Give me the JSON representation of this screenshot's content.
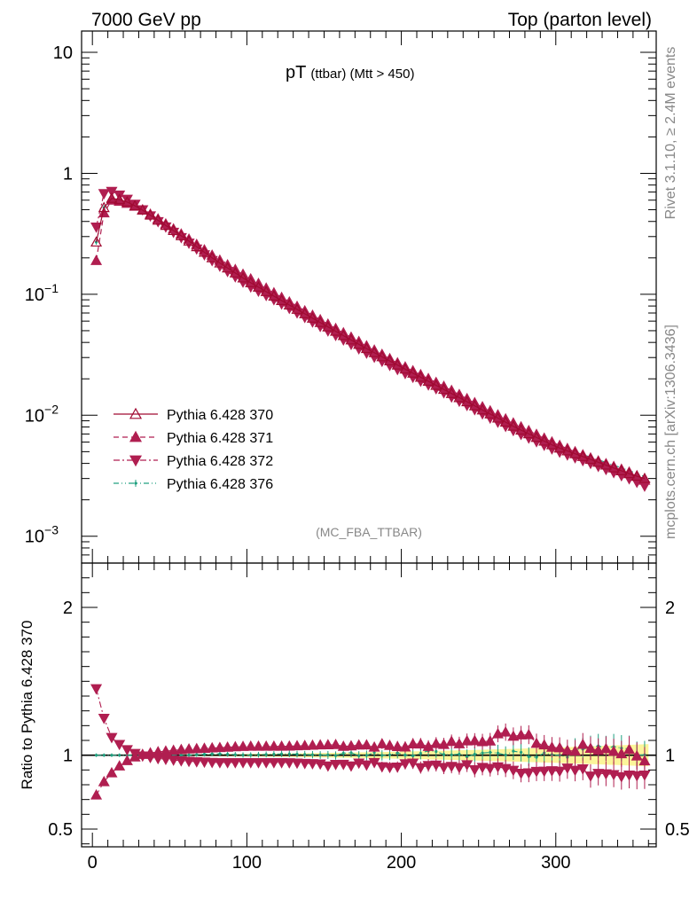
{
  "header": {
    "left": "7000 GeV pp",
    "right": "Top (parton level)"
  },
  "side_labels": {
    "rivet": "Rivet 3.1.10, ≥ 2.4M events",
    "mcplots": "mcplots.cern.ch [arXiv:1306.3436]"
  },
  "chart_data": [
    {
      "type": "line",
      "title_main": "pT",
      "title_sub": "(ttbar) (Mtt > 450)",
      "watermark": "(MC_FBA_TTBAR)",
      "yscale": "log",
      "ylim": [
        0.0006,
        15
      ],
      "xlim": [
        -7,
        365
      ],
      "y_ticks": [
        {
          "value": 10,
          "label": "10"
        },
        {
          "value": 1,
          "label": "1"
        },
        {
          "value": 0.1,
          "label": "10",
          "exp": "−1"
        },
        {
          "value": 0.01,
          "label": "10",
          "exp": "−2"
        },
        {
          "value": 0.001,
          "label": "10",
          "exp": "−3"
        }
      ],
      "legend_position": "bottom-left",
      "series": [
        {
          "name": "Pythia 6.428 370",
          "color": "#a00a32",
          "marker": "triangle-up-open",
          "line": "solid",
          "x": [
            2.5,
            7.5,
            12.5,
            20,
            30,
            40,
            60,
            80,
            100,
            125,
            150,
            175,
            200,
            225,
            250,
            275,
            300,
            325,
            350,
            357.5
          ],
          "y": [
            0.27,
            0.52,
            0.62,
            0.6,
            0.52,
            0.43,
            0.29,
            0.19,
            0.13,
            0.085,
            0.056,
            0.037,
            0.025,
            0.017,
            0.0115,
            0.0078,
            0.0055,
            0.0042,
            0.0032,
            0.003
          ]
        },
        {
          "name": "Pythia 6.428 371",
          "color": "#b01e50",
          "marker": "triangle-up-filled",
          "line": "dashed",
          "x": [
            2.5,
            7.5,
            12.5,
            20,
            30,
            40,
            60,
            80,
            100,
            125,
            150,
            175,
            200,
            225,
            250,
            275,
            300,
            325,
            350,
            357.5
          ],
          "y": [
            0.19,
            0.47,
            0.6,
            0.58,
            0.52,
            0.44,
            0.3,
            0.2,
            0.14,
            0.09,
            0.059,
            0.039,
            0.026,
            0.018,
            0.0122,
            0.0083,
            0.0058,
            0.0043,
            0.0033,
            0.0029
          ]
        },
        {
          "name": "Pythia 6.428 372",
          "color": "#b01e50",
          "marker": "triangle-down-filled",
          "line": "dashdot",
          "x": [
            2.5,
            7.5,
            12.5,
            20,
            30,
            40,
            60,
            80,
            100,
            125,
            150,
            175,
            200,
            225,
            250,
            275,
            300,
            325,
            350,
            357.5
          ],
          "y": [
            0.36,
            0.68,
            0.71,
            0.64,
            0.53,
            0.42,
            0.28,
            0.18,
            0.12,
            0.08,
            0.052,
            0.034,
            0.023,
            0.016,
            0.0107,
            0.0072,
            0.0051,
            0.0039,
            0.0029,
            0.0026
          ]
        },
        {
          "name": "Pythia 6.428 376",
          "color": "#20a080",
          "marker": "dot",
          "line": "dashdotdot",
          "x": [
            2.5,
            7.5,
            12.5,
            20,
            30,
            40,
            60,
            80,
            100,
            125,
            150,
            175,
            200,
            225,
            250,
            275,
            300,
            325,
            350,
            357.5
          ],
          "y": [
            0.27,
            0.52,
            0.62,
            0.6,
            0.52,
            0.43,
            0.29,
            0.19,
            0.13,
            0.086,
            0.057,
            0.037,
            0.025,
            0.017,
            0.0117,
            0.008,
            0.0056,
            0.0044,
            0.0034,
            0.0031
          ]
        }
      ]
    },
    {
      "type": "line",
      "ylabel": "Ratio to Pythia 6.428 370",
      "xlim": [
        -7,
        365
      ],
      "ylim": [
        0.38,
        2.3
      ],
      "y_ticks": [
        0.5,
        1,
        2
      ],
      "x_ticks": [
        0,
        100,
        200,
        300
      ],
      "reference_line": 1,
      "series": [
        {
          "name": "Pythia 6.428 371",
          "x": [
            2.5,
            7.5,
            12.5,
            20,
            30,
            40,
            60,
            80,
            100,
            125,
            150,
            175,
            200,
            225,
            250,
            275,
            300,
            325,
            350,
            357.5
          ],
          "y": [
            0.73,
            0.82,
            0.88,
            0.95,
            1.0,
            1.02,
            1.04,
            1.05,
            1.06,
            1.06,
            1.07,
            1.07,
            1.06,
            1.08,
            1.1,
            1.15,
            1.04,
            1.05,
            1.02,
            0.97
          ]
        },
        {
          "name": "Pythia 6.428 372",
          "x": [
            2.5,
            7.5,
            12.5,
            20,
            30,
            40,
            60,
            80,
            100,
            125,
            150,
            175,
            200,
            225,
            250,
            275,
            300,
            325,
            350,
            357.5
          ],
          "y": [
            1.45,
            1.25,
            1.12,
            1.05,
            1.0,
            0.98,
            0.96,
            0.95,
            0.95,
            0.95,
            0.94,
            0.94,
            0.93,
            0.93,
            0.92,
            0.9,
            0.91,
            0.88,
            0.85,
            0.85
          ]
        },
        {
          "name": "Pythia 6.428 376",
          "x": [
            2.5,
            7.5,
            12.5,
            20,
            30,
            40,
            60,
            80,
            100,
            125,
            150,
            175,
            200,
            225,
            250,
            275,
            300,
            325,
            350,
            357.5
          ],
          "y": [
            1.0,
            1.0,
            1.0,
            1.0,
            1.0,
            1.0,
            1.0,
            1.01,
            1.0,
            1.01,
            1.0,
            1.01,
            1.0,
            1.02,
            1.0,
            1.02,
            0.98,
            1.05,
            1.03,
            1.02
          ]
        }
      ]
    }
  ]
}
